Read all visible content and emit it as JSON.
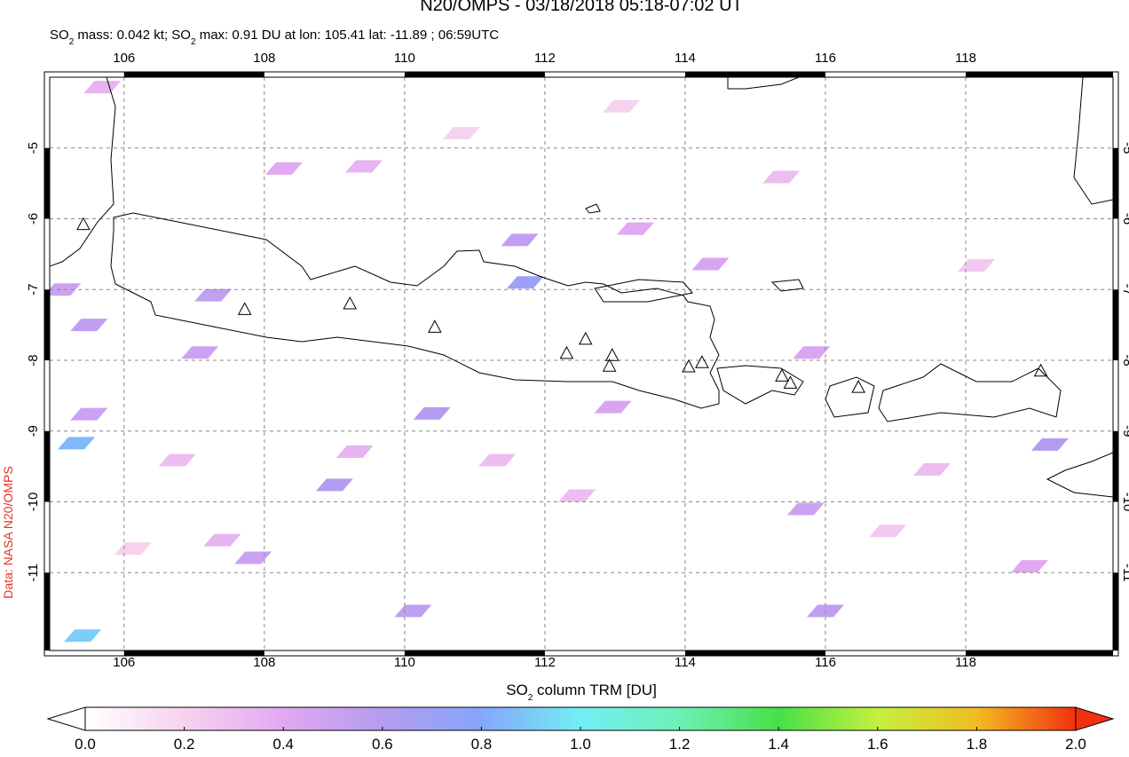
{
  "chart_data": {
    "type": "map",
    "title": "N20/OMPS - 03/18/2018 05:18-07:02 UT",
    "subtitle_parts": [
      "SO",
      "2",
      " mass: 0.042 kt; SO",
      "2",
      " max: 0.91 DU at lon: 105.41 lat: -11.89 ; 06:59UTC"
    ],
    "x_label_parts": [
      "SO",
      "2",
      " column TRM [DU]"
    ],
    "credit": "Data: NASA N20/OMPS",
    "xlim": [
      104.94,
      120.1
    ],
    "ylim": [
      -12.1,
      -4.0
    ],
    "xticks": [
      106,
      108,
      110,
      112,
      114,
      116,
      118
    ],
    "yticks": [
      -5,
      -6,
      -7,
      -8,
      -9,
      -10,
      -11
    ],
    "grid": true,
    "volcanoes": {
      "lon": [
        105.42,
        107.72,
        109.22,
        110.43,
        112.31,
        112.58,
        112.96,
        112.92,
        114.05,
        114.24,
        115.38,
        115.5,
        116.47,
        119.07
      ],
      "lat": [
        -6.09,
        -7.29,
        -7.21,
        -7.54,
        -7.91,
        -7.71,
        -7.94,
        -8.09,
        -8.1,
        -8.04,
        -8.23,
        -8.33,
        -8.39,
        -8.16
      ]
    },
    "pixels": {
      "lon": [
        105.41,
        105.32,
        111.72,
        111.64,
        107.27,
        105.5,
        110.39,
        109.0,
        110.12,
        107.84,
        107.08,
        105.5,
        105.12,
        116.0,
        115.72,
        115.8,
        113.29,
        112.97,
        119.2,
        118.91,
        108.28,
        109.42,
        105.69,
        114.36,
        109.29,
        106.76,
        111.32,
        117.52,
        115.37,
        112.46,
        107.4,
        116.89,
        113.09,
        118.15,
        106.13,
        110.81
      ],
      "lat": [
        -11.89,
        -9.17,
        -6.9,
        -6.3,
        -7.08,
        -7.5,
        -8.75,
        -9.76,
        -11.54,
        -10.79,
        -7.89,
        -8.76,
        -7.0,
        -11.54,
        -10.1,
        -7.89,
        -6.14,
        -8.66,
        -9.19,
        -10.91,
        -5.29,
        -5.26,
        -4.14,
        -6.64,
        -9.29,
        -9.41,
        -9.41,
        -9.54,
        -5.41,
        -9.91,
        -10.54,
        -10.41,
        -4.41,
        -6.66,
        -10.66,
        -4.79
      ],
      "values": [
        0.91,
        0.85,
        0.7,
        0.55,
        0.55,
        0.55,
        0.6,
        0.6,
        0.55,
        0.5,
        0.5,
        0.5,
        0.5,
        0.55,
        0.5,
        0.45,
        0.4,
        0.45,
        0.6,
        0.4,
        0.4,
        0.35,
        0.35,
        0.45,
        0.35,
        0.3,
        0.3,
        0.3,
        0.3,
        0.3,
        0.35,
        0.25,
        0.2,
        0.25,
        0.2,
        0.2
      ]
    },
    "colorbar": {
      "lim": [
        0,
        2
      ],
      "ticks": [
        {
          "value": 0,
          "label": "0.0"
        },
        {
          "value": 0.2,
          "label": "0.2"
        },
        {
          "value": 0.4,
          "label": "0.4"
        },
        {
          "value": 0.6,
          "label": "0.6"
        },
        {
          "value": 0.8,
          "label": "0.8"
        },
        {
          "value": 1,
          "label": "1.0"
        },
        {
          "value": 1.2,
          "label": "1.2"
        },
        {
          "value": 1.4,
          "label": "1.4"
        },
        {
          "value": 1.6,
          "label": "1.6"
        },
        {
          "value": 1.8,
          "label": "1.8"
        },
        {
          "value": 2,
          "label": "2.0"
        }
      ],
      "colors": [
        "#ffffff",
        "#f7d2ef",
        "#e2a8f2",
        "#b49cf0",
        "#86a6fb",
        "#72eef4",
        "#6ef0b4",
        "#48e048",
        "#c4f03e",
        "#f2bc22",
        "#f2300f"
      ]
    }
  }
}
